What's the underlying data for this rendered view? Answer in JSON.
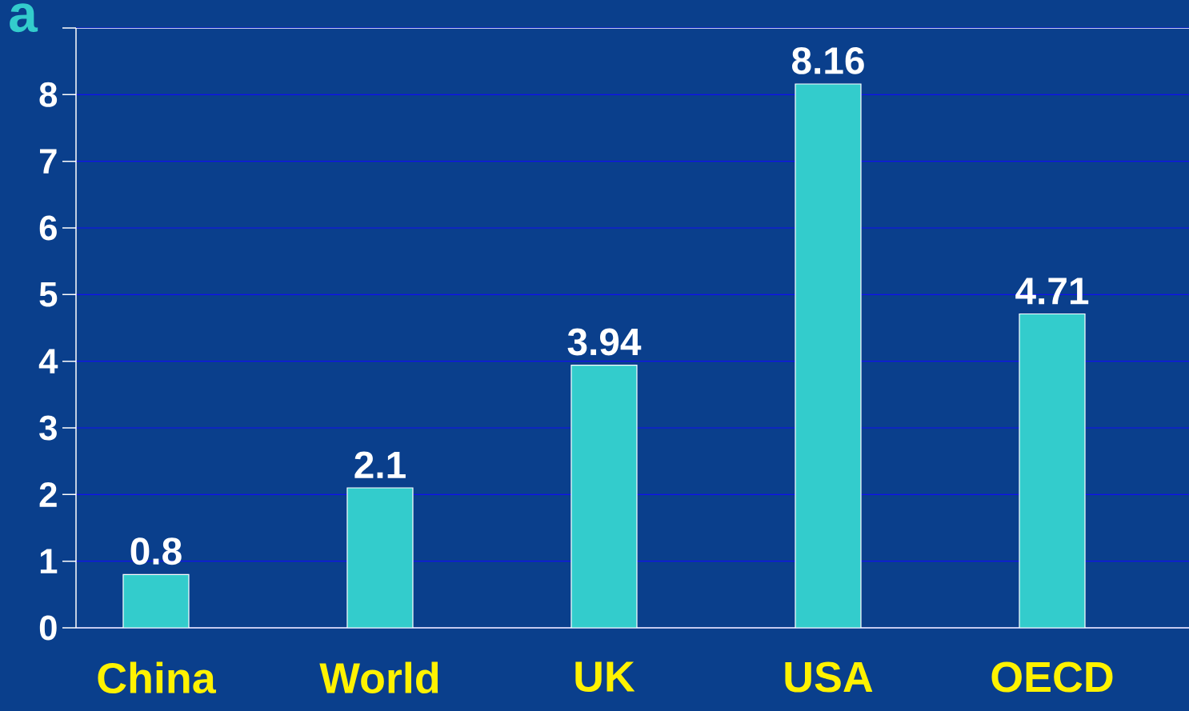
{
  "chart_data": {
    "type": "bar",
    "title": "a",
    "categories": [
      "China",
      "World",
      "UK",
      "USA",
      "OECD"
    ],
    "values": [
      0.8,
      2.1,
      3.94,
      8.16,
      4.71
    ],
    "color": "#33cccc",
    "ylim": [
      0,
      9
    ],
    "yticks": [
      0,
      1,
      2,
      3,
      4,
      5,
      6,
      7,
      8,
      {
        "value": 9,
        "label": null
      }
    ],
    "grid": "y",
    "data_labels": true
  }
}
